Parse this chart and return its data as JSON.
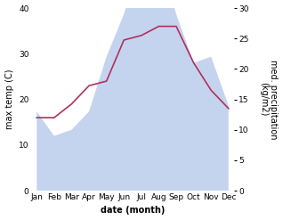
{
  "months": [
    "Jan",
    "Feb",
    "Mar",
    "Apr",
    "May",
    "Jun",
    "Jul",
    "Aug",
    "Sep",
    "Oct",
    "Nov",
    "Dec"
  ],
  "temp_max": [
    16,
    16,
    19,
    23,
    24,
    33,
    34,
    36,
    36,
    28,
    22,
    18
  ],
  "precip": [
    13,
    9,
    10,
    13,
    22,
    29,
    39,
    39,
    29,
    21,
    22,
    14
  ],
  "temp_ylim": [
    0,
    40
  ],
  "precip_ylim": [
    0,
    30
  ],
  "temp_color": "#b03060",
  "precip_fill_color": "#c5d4ee",
  "ylabel_left": "max temp (C)",
  "ylabel_right": "med. precipitation\n(kg/m2)",
  "xlabel": "date (month)",
  "bg_color": "#ffffff",
  "label_fontsize": 7,
  "tick_fontsize": 6.5
}
